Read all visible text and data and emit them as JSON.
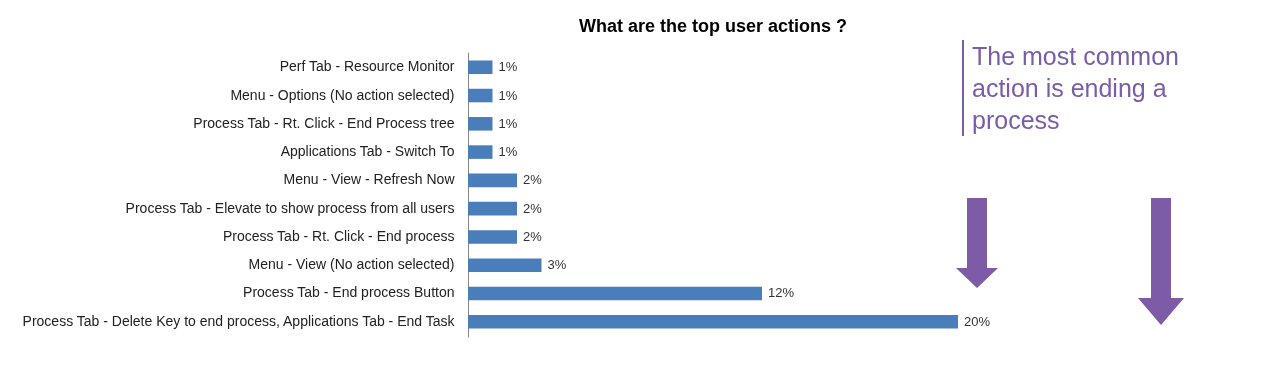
{
  "chart_data": {
    "type": "bar",
    "orientation": "horizontal",
    "title": "What are the top user actions ?",
    "categories": [
      "Perf Tab - Resource Monitor",
      "Menu - Options (No action selected)",
      "Process Tab - Rt. Click - End Process tree",
      "Applications Tab - Switch To",
      "Menu - View - Refresh Now",
      "Process Tab - Elevate to show process from all users",
      "Process Tab - Rt. Click - End process",
      "Menu - View (No action selected)",
      "Process Tab - End process Button",
      "Process Tab - Delete Key to end process, Applications Tab - End Task"
    ],
    "values": [
      1,
      1,
      1,
      1,
      2,
      2,
      2,
      3,
      12,
      20
    ],
    "value_labels": [
      "1%",
      "1%",
      "1%",
      "1%",
      "2%",
      "2%",
      "2%",
      "3%",
      "12%",
      "20%"
    ],
    "color": "#4a7ebb",
    "annotations": [
      "The most common action is ending a process"
    ]
  }
}
